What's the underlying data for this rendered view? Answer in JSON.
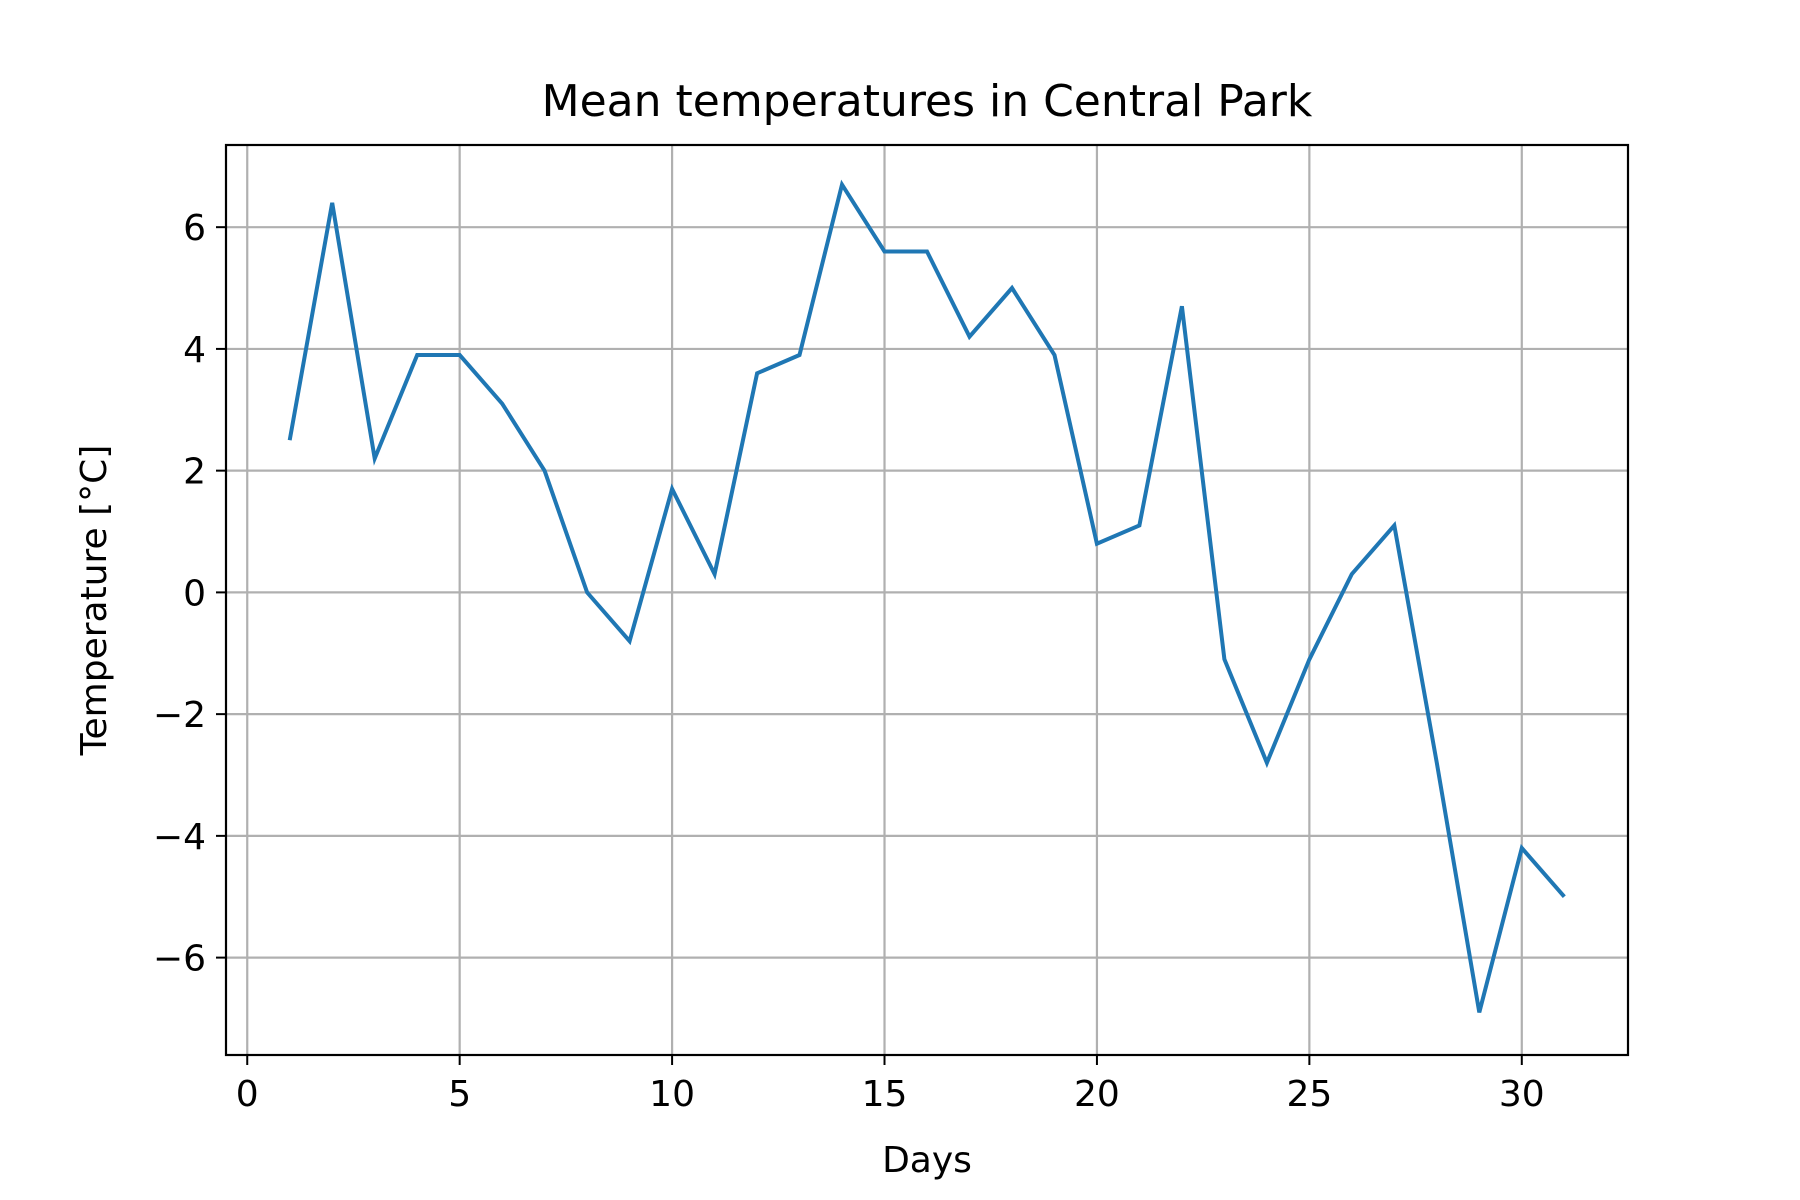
{
  "chart_data": {
    "type": "line",
    "title": "Mean temperatures in Central Park",
    "xlabel": "Days",
    "ylabel": "Temperature [°C]",
    "xlim": [
      -0.5,
      32.5
    ],
    "ylim": [
      -7.6,
      7.35
    ],
    "xticks": [
      0,
      5,
      10,
      15,
      20,
      25,
      30
    ],
    "xtick_labels": [
      "0",
      "5",
      "10",
      "15",
      "20",
      "25",
      "30"
    ],
    "yticks": [
      6,
      4,
      2,
      0,
      -2,
      -4,
      -6
    ],
    "ytick_labels": [
      "6",
      "4",
      "2",
      "0",
      "−2",
      "−4",
      "−6"
    ],
    "grid": true,
    "legend": "none",
    "series": [
      {
        "color": "#1f77b4",
        "x": [
          1,
          2,
          3,
          4,
          5,
          6,
          7,
          8,
          9,
          10,
          11,
          12,
          13,
          14,
          15,
          16,
          17,
          18,
          19,
          20,
          21,
          22,
          23,
          24,
          25,
          26,
          27,
          28,
          29,
          30,
          31
        ],
        "y": [
          2.5,
          6.4,
          2.2,
          3.9,
          3.9,
          3.1,
          2.0,
          0.0,
          -0.8,
          1.7,
          0.3,
          3.6,
          3.9,
          6.7,
          5.6,
          5.6,
          4.2,
          5.0,
          3.9,
          0.8,
          1.1,
          4.7,
          -1.1,
          -2.8,
          -1.1,
          0.3,
          1.1,
          -2.8,
          -6.9,
          -4.2,
          -5.0
        ]
      }
    ]
  }
}
